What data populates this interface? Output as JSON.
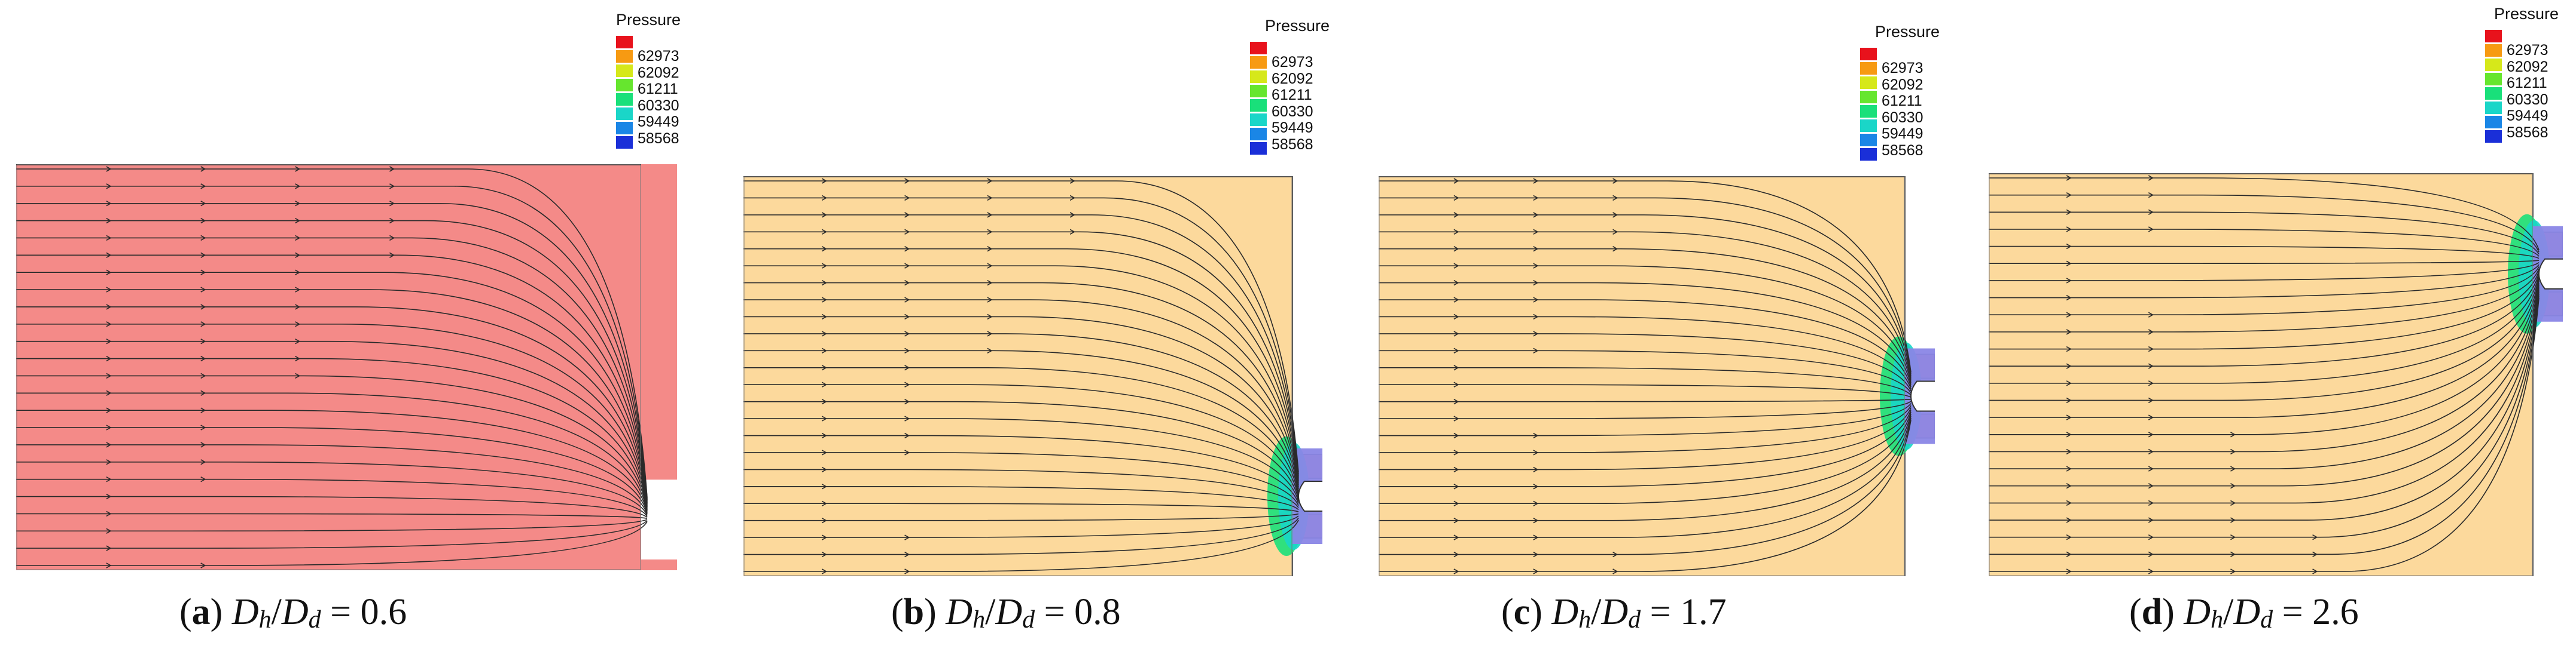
{
  "legend": {
    "title": "Pressure",
    "values": [
      "62973",
      "62092",
      "61211",
      "60330",
      "59449",
      "58568"
    ],
    "colors": [
      "#e8121c",
      "#f79a12",
      "#d6e81a",
      "#66e62e",
      "#19e07a",
      "#1ad6c8",
      "#1a86e6",
      "#1a2fd8"
    ]
  },
  "panels": [
    {
      "label": "a",
      "ratio_value": "0.6",
      "fill_color": "#f48a88",
      "outlet_height_fraction": 0.88,
      "has_pressure_gradient": false
    },
    {
      "label": "b",
      "ratio_value": "0.8",
      "fill_color": "#fcd99c",
      "outlet_height_fraction": 0.8,
      "has_pressure_gradient": true
    },
    {
      "label": "c",
      "ratio_value": "1.7",
      "fill_color": "#fcd99c",
      "outlet_height_fraction": 0.55,
      "has_pressure_gradient": true
    },
    {
      "label": "d",
      "ratio_value": "2.6",
      "fill_color": "#fcd99c",
      "outlet_height_fraction": 0.25,
      "has_pressure_gradient": true
    }
  ],
  "caption_ratio": {
    "numerator": "D",
    "numerator_sub": "h",
    "denominator": "D",
    "denominator_sub": "d",
    "equals": "="
  }
}
